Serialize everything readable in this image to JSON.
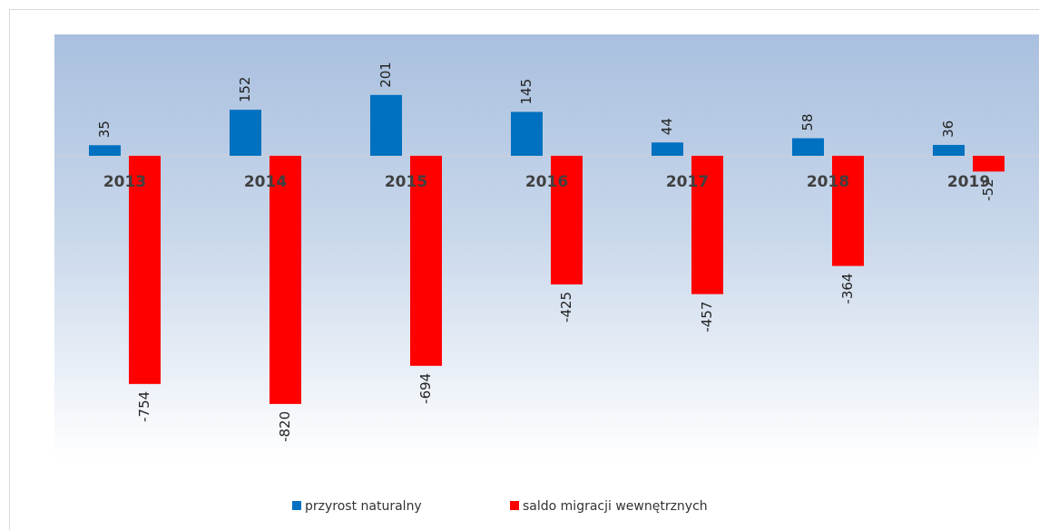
{
  "chart_data": {
    "type": "bar",
    "categories": [
      "2013",
      "2014",
      "2015",
      "2016",
      "2017",
      "2018",
      "2019"
    ],
    "series": [
      {
        "name": "przyrost naturalny",
        "color": "#0070c0",
        "values": [
          35,
          152,
          201,
          145,
          44,
          58,
          36
        ]
      },
      {
        "name": "saldo migracji wewnętrznych",
        "color": "#ff0000",
        "values": [
          -754,
          -820,
          -694,
          -425,
          -457,
          -364,
          -52
        ]
      }
    ],
    "ylim": [
      -1006,
      401
    ],
    "legend": "bottom"
  }
}
